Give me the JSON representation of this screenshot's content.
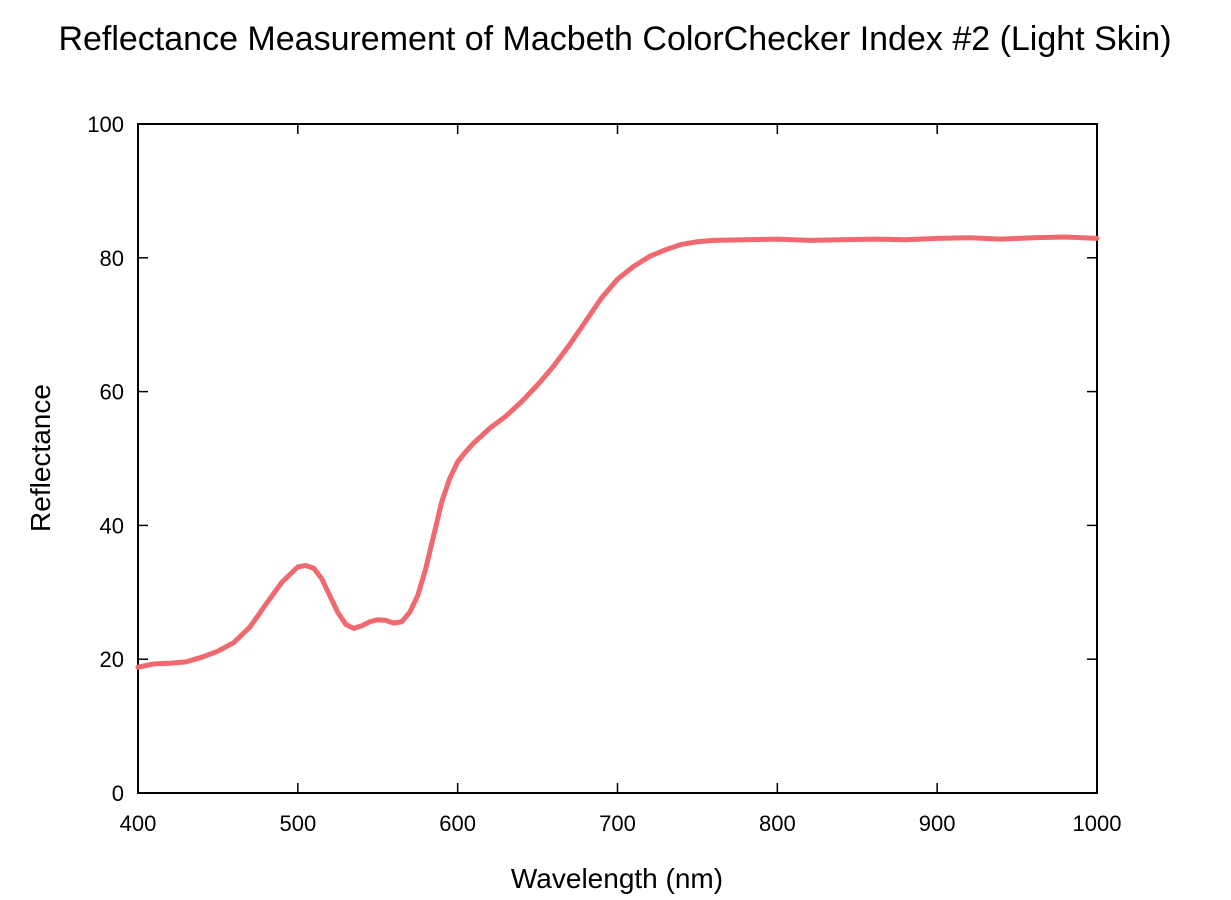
{
  "chart_data": {
    "type": "line",
    "title": "Reflectance Measurement of Macbeth ColorChecker Index #2 (Light Skin)",
    "xlabel": "Wavelength (nm)",
    "ylabel": "Reflectance",
    "xlim": [
      400,
      1000
    ],
    "ylim": [
      0,
      100
    ],
    "xticks": [
      400,
      500,
      600,
      700,
      800,
      900,
      1000
    ],
    "yticks": [
      0,
      20,
      40,
      60,
      80,
      100
    ],
    "grid": false,
    "legend": "none",
    "series": [
      {
        "name": "Light Skin",
        "color": "#f0696e",
        "x": [
          400,
          410,
          420,
          430,
          440,
          450,
          460,
          470,
          480,
          490,
          500,
          505,
          510,
          515,
          520,
          525,
          530,
          535,
          540,
          545,
          550,
          555,
          560,
          565,
          570,
          575,
          580,
          585,
          590,
          595,
          600,
          605,
          610,
          620,
          630,
          640,
          650,
          660,
          670,
          680,
          690,
          700,
          710,
          720,
          730,
          740,
          750,
          760,
          780,
          800,
          820,
          840,
          860,
          880,
          900,
          920,
          940,
          960,
          980,
          1000
        ],
        "values": [
          18.8,
          19.3,
          19.4,
          19.6,
          20.3,
          21.2,
          22.5,
          24.8,
          28.2,
          31.5,
          33.8,
          34.0,
          33.6,
          32.0,
          29.5,
          27.0,
          25.2,
          24.6,
          25.0,
          25.6,
          25.9,
          25.8,
          25.4,
          25.6,
          27.0,
          29.5,
          33.5,
          38.5,
          43.5,
          47.0,
          49.5,
          51.0,
          52.3,
          54.5,
          56.3,
          58.5,
          61.0,
          63.8,
          67.0,
          70.5,
          74.0,
          76.8,
          78.7,
          80.2,
          81.2,
          82.0,
          82.4,
          82.6,
          82.7,
          82.8,
          82.6,
          82.7,
          82.8,
          82.7,
          82.9,
          83.0,
          82.8,
          83.0,
          83.1,
          82.9
        ]
      }
    ]
  }
}
